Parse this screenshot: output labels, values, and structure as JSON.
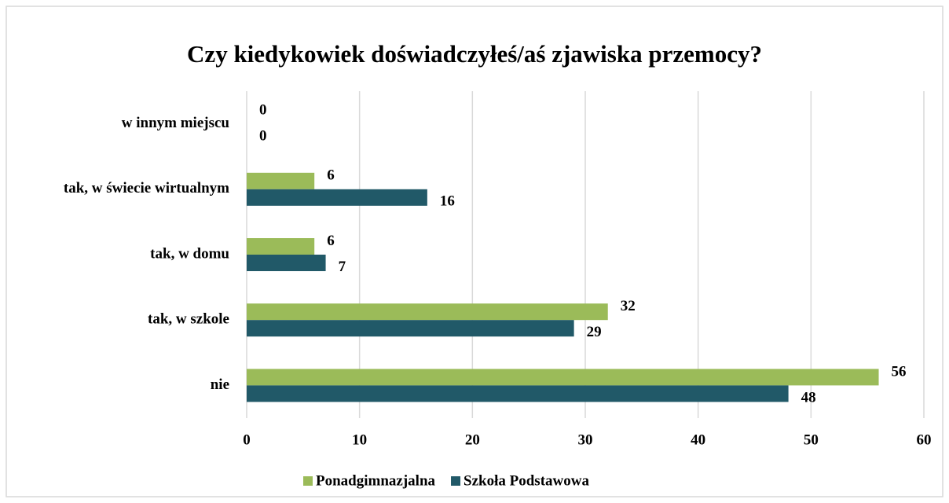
{
  "chart_data": {
    "type": "bar",
    "orientation": "horizontal",
    "title": "Czy kiedykowiek doświadczyłeś/aś zjawiska przemocy?",
    "categories": [
      "w innym miejscu",
      "tak, w świecie wirtualnym",
      "tak, w domu",
      "tak, w szkole",
      "nie"
    ],
    "series": [
      {
        "name": "Ponadgimnazjalna",
        "color": "#9bbb59",
        "values": [
          0,
          6,
          6,
          32,
          56
        ]
      },
      {
        "name": "Szkoła Podstawowa",
        "color": "#215968",
        "values": [
          0,
          16,
          7,
          29,
          48
        ]
      }
    ],
    "xlim": [
      0,
      60
    ],
    "xticks": [
      0,
      10,
      20,
      30,
      40,
      50,
      60
    ],
    "grid": true,
    "legend": "bottom"
  }
}
